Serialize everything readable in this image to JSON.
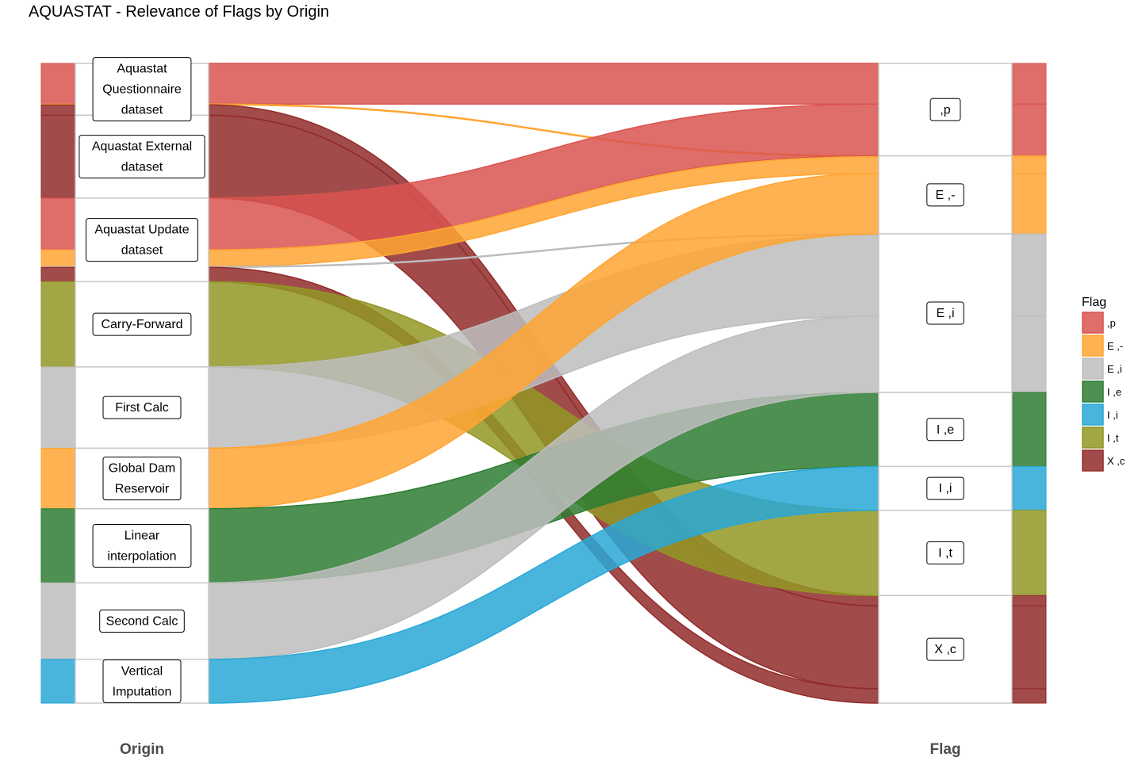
{
  "title": "AQUASTAT - Relevance of Flags by Origin",
  "chart_data": {
    "type": "alluvial",
    "title": "AQUASTAT - Relevance of Flags by Origin",
    "axes": [
      "Origin",
      "Flag"
    ],
    "legend": {
      "title": "Flag",
      "position": "right"
    },
    "origins": [
      "Aquastat Questionnaire dataset",
      "Aquastat External dataset",
      "Aquastat Update dataset",
      "Carry-Forward",
      "First Calc",
      "Global Dam Reservoir",
      "Linear interpolation",
      "Second Calc",
      "Vertical Imputation"
    ],
    "flags": [
      {
        "name": " ,p",
        "color": "#D9534F"
      },
      {
        "name": "E ,-",
        "color": "#FFA533"
      },
      {
        "name": "E ,i",
        "color": "#BDBDBD"
      },
      {
        "name": "I ,e",
        "color": "#2E7D32"
      },
      {
        "name": "I ,i",
        "color": "#29A8D6"
      },
      {
        "name": "I ,t",
        "color": "#929624"
      },
      {
        "name": "X ,c",
        "color": "#922B2B"
      }
    ],
    "flows": [
      {
        "origin": "Aquastat Questionnaire dataset",
        "flag": " ,p",
        "value": 51
      },
      {
        "origin": "Aquastat Questionnaire dataset",
        "flag": "E ,-",
        "value": 1
      },
      {
        "origin": "Aquastat Questionnaire dataset",
        "flag": "X ,c",
        "value": 13
      },
      {
        "origin": "Aquastat External dataset",
        "flag": "X ,c",
        "value": 104
      },
      {
        "origin": "Aquastat Update dataset",
        "flag": " ,p",
        "value": 65
      },
      {
        "origin": "Aquastat Update dataset",
        "flag": "E ,-",
        "value": 21
      },
      {
        "origin": "Aquastat Update dataset",
        "flag": "E ,i",
        "value": 1
      },
      {
        "origin": "Aquastat Update dataset",
        "flag": "X ,c",
        "value": 18
      },
      {
        "origin": "Carry-Forward",
        "flag": "I ,t",
        "value": 107
      },
      {
        "origin": "First Calc",
        "flag": "E ,i",
        "value": 102
      },
      {
        "origin": "Global Dam Reservoir",
        "flag": "E ,-",
        "value": 76
      },
      {
        "origin": "Linear interpolation",
        "flag": "I ,e",
        "value": 93
      },
      {
        "origin": "Second Calc",
        "flag": "E ,i",
        "value": 96
      },
      {
        "origin": "Vertical Imputation",
        "flag": "I ,i",
        "value": 55
      }
    ]
  }
}
